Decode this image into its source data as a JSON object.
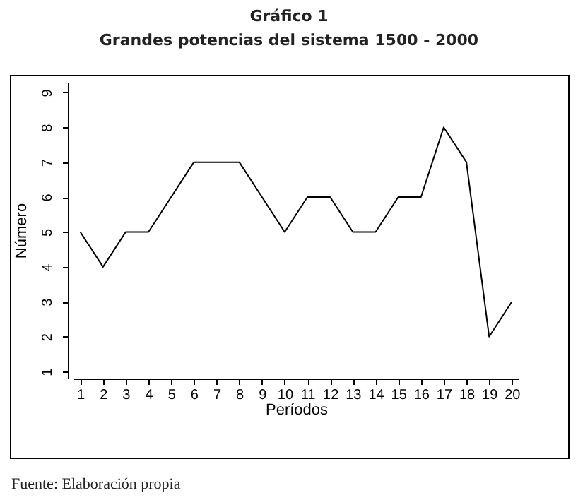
{
  "chart_data": {
    "type": "line",
    "title": "Gráfico 1",
    "subtitle": "Grandes potencias del sistema 1500 - 2000",
    "xlabel": "Períodos",
    "ylabel": "Número",
    "x": [
      1,
      2,
      3,
      4,
      5,
      6,
      7,
      8,
      9,
      10,
      11,
      12,
      13,
      14,
      15,
      16,
      17,
      18,
      19,
      20
    ],
    "series": [
      {
        "color": "#000000",
        "values": [
          5,
          4,
          5,
          5,
          6,
          7,
          7,
          7,
          6,
          5,
          6,
          6,
          5,
          5,
          6,
          6,
          8,
          7,
          2,
          3
        ]
      }
    ],
    "xlim": [
      0.7,
      20.3
    ],
    "xticks": [
      1,
      2,
      3,
      4,
      5,
      6,
      7,
      8,
      9,
      10,
      11,
      12,
      13,
      14,
      15,
      16,
      17,
      18,
      19,
      20
    ],
    "ylim": [
      0.8,
      9.3
    ],
    "yticks": [
      1,
      2,
      3,
      4,
      5,
      6,
      7,
      8,
      9
    ],
    "grid": false,
    "legend": false,
    "marker": "none",
    "line_style": "solid",
    "annotations": [
      "Fuente: Elaboración propia"
    ]
  }
}
